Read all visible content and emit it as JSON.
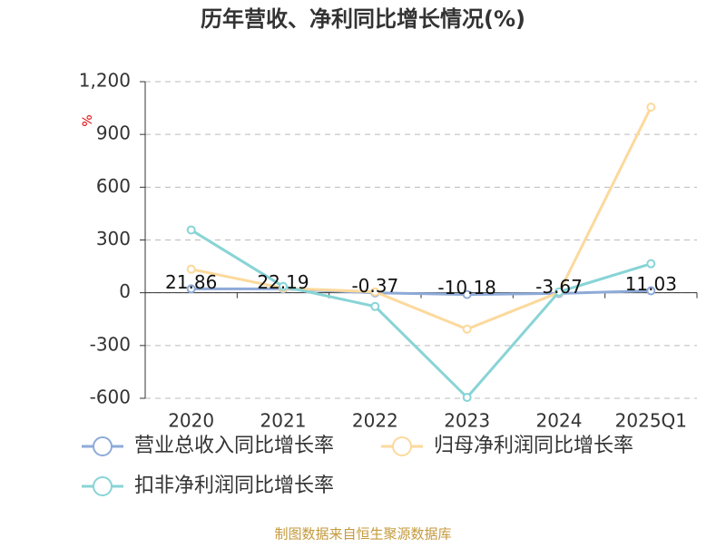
{
  "chart_data": {
    "type": "line",
    "title": "历年营收、净利同比增长情况(%)",
    "y_label": "%",
    "categories": [
      "2020",
      "2021",
      "2022",
      "2023",
      "2024",
      "2025Q1"
    ],
    "series": [
      {
        "name": "营业总收入同比增长率",
        "color": "#8eaad8",
        "values": [
          21.86,
          22.19,
          -0.37,
          -10.18,
          -3.67,
          11.03
        ],
        "show_labels": true
      },
      {
        "name": "归母净利润同比增长率",
        "color": "#fcd99c",
        "values": [
          134,
          26,
          5,
          -207,
          2,
          1055
        ],
        "show_labels": false
      },
      {
        "name": "扣非净利润同比增长率",
        "color": "#88d4d6",
        "values": [
          357,
          36,
          -78,
          -595,
          5,
          165
        ],
        "show_labels": false
      }
    ],
    "ylim": [
      -600,
      1200
    ],
    "yticks": [
      -600,
      -300,
      0,
      300,
      600,
      900,
      {
        "value": 1200,
        "label": "1,200"
      }
    ],
    "grid": true,
    "source": "制图数据来自恒生聚源数据库"
  }
}
